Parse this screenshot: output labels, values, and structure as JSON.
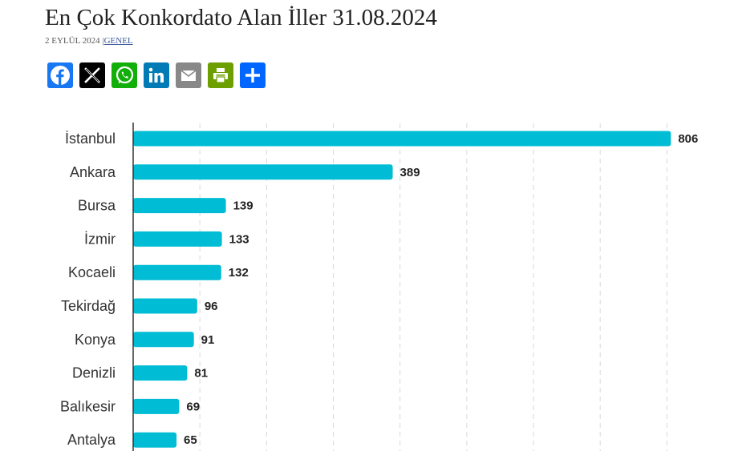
{
  "header": {
    "title": "En Çok Konkordato Alan İller 31.08.2024",
    "date": "2 EYLÜL 2024",
    "separator": "|",
    "category": "GENEL"
  },
  "share": [
    {
      "name": "facebook-icon",
      "color": "#1877f2"
    },
    {
      "name": "x-icon",
      "color": "#000000"
    },
    {
      "name": "whatsapp-icon",
      "color": "#12af0a"
    },
    {
      "name": "linkedin-icon",
      "color": "#007bb5"
    },
    {
      "name": "email-icon",
      "color": "#888888"
    },
    {
      "name": "print-icon",
      "color": "#6d9f00"
    },
    {
      "name": "share-icon",
      "color": "#0166ff"
    }
  ],
  "chart_data": {
    "type": "bar",
    "orientation": "horizontal",
    "categories": [
      "İstanbul",
      "Ankara",
      "Bursa",
      "İzmir",
      "Kocaeli",
      "Tekirdağ",
      "Konya",
      "Denizli",
      "Balıkesir",
      "Antalya"
    ],
    "values": [
      806,
      389,
      139,
      133,
      132,
      96,
      91,
      81,
      69,
      65
    ],
    "xlim": [
      0,
      820
    ],
    "grid": true,
    "bar_color": "#00bcd4"
  }
}
